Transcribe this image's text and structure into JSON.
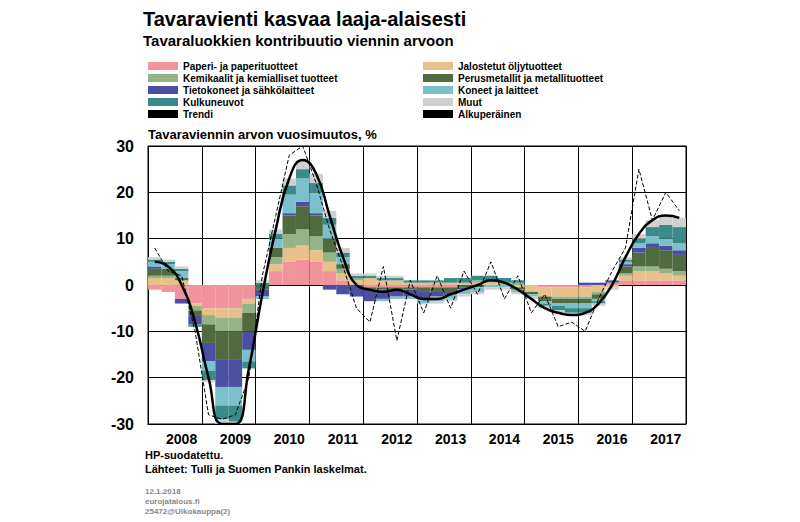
{
  "chart_data": {
    "type": "bar",
    "title": "Tavaravienti kasvaa laaja-alaisesti",
    "subtitle": "Tavaraluokkien kontribuutio viennin arvoon",
    "y_label": "Tavaraviennin arvon vuosimuutos, %",
    "notes": [
      "HP-suodatettu.",
      "Lähteet: Tulli ja Suomen Pankin laskelmat."
    ],
    "footer": [
      "12.1.2018",
      "eurojatalous.fi",
      "25472@Ulkokauppa(2)"
    ],
    "stacked": true,
    "grid": true,
    "ylim": [
      -30,
      30
    ],
    "yticks": [
      -30,
      -20,
      -10,
      0,
      10,
      20,
      30
    ],
    "categories": [
      null,
      null,
      "2008",
      null,
      null,
      null,
      "2009",
      null,
      null,
      null,
      "2010",
      null,
      null,
      null,
      "2011",
      null,
      null,
      null,
      "2012",
      null,
      null,
      null,
      "2013",
      null,
      null,
      null,
      "2014",
      null,
      null,
      null,
      "2015",
      null,
      null,
      null,
      "2016",
      null,
      null,
      null,
      "2017",
      null
    ],
    "series": [
      {
        "name": "Paperi- ja paperituotteet",
        "type": "bar",
        "color": "#f0939b",
        "values": [
          -1,
          -1.5,
          -3,
          -4,
          -5,
          -5,
          -5,
          -3,
          0,
          3,
          5,
          5.5,
          5,
          3,
          1,
          0,
          -0.5,
          -0.5,
          -0.5,
          -0.5,
          -0.5,
          -0.5,
          -0.5,
          0,
          0,
          0,
          0,
          0,
          0,
          -0.5,
          -0.5,
          -0.5,
          -0.5,
          0,
          0.5,
          1,
          1,
          1,
          1,
          1
        ]
      },
      {
        "name": "Jalostetut öljytuotteet",
        "type": "bar",
        "color": "#e8c08a",
        "values": [
          1.5,
          1.5,
          1,
          -0.5,
          -1.5,
          -2,
          -2,
          -1,
          0,
          1.5,
          3,
          3,
          2.5,
          2,
          1.5,
          1,
          1.5,
          1,
          1,
          0.5,
          0.5,
          0.5,
          0.5,
          0.5,
          0.5,
          0.5,
          0,
          -0.5,
          -1.5,
          -2,
          -2,
          -2,
          -2,
          -1.5,
          -0.5,
          1,
          2,
          2,
          1.5,
          1
        ]
      },
      {
        "name": "Kemikaalit ja kemialliset tuotteet",
        "type": "bar",
        "color": "#94b487",
        "values": [
          0.5,
          0.5,
          0,
          -1,
          -2,
          -3,
          -3,
          -2,
          0,
          1.5,
          3,
          3.5,
          3,
          2,
          1,
          0.5,
          0,
          0,
          0,
          0,
          0,
          0,
          0,
          0,
          0.5,
          0.5,
          0.5,
          0.5,
          0,
          0,
          -0.5,
          -0.5,
          -0.5,
          -0.5,
          0,
          0.5,
          1,
          1,
          1,
          1
        ]
      },
      {
        "name": "Perusmetallit ja metallituotteet",
        "type": "bar",
        "color": "#4f6b3f",
        "values": [
          1.5,
          1.5,
          0.5,
          -1,
          -4,
          -6,
          -6,
          -4,
          -1,
          2,
          4,
          5,
          4.5,
          3,
          1,
          0,
          -0.5,
          -0.5,
          -0.5,
          -0.5,
          -1,
          -1,
          -1,
          -0.5,
          -0.5,
          0,
          0,
          -0.5,
          -0.5,
          -1,
          -1,
          -1,
          -1,
          -1,
          0,
          1.5,
          3,
          4,
          4,
          3.5
        ]
      },
      {
        "name": "Tietokoneet ja sähkölaitteet",
        "type": "bar",
        "color": "#4a4fa3",
        "values": [
          0.5,
          0,
          -1,
          -2,
          -4,
          -6,
          -6,
          -4,
          -1.5,
          0,
          0.5,
          1,
          0.5,
          -1,
          -2,
          -2.5,
          -2.5,
          -2,
          -1.5,
          -1.5,
          -1.5,
          -1,
          -0.5,
          -0.5,
          0,
          0,
          0,
          0,
          0,
          0,
          0,
          0,
          0.5,
          0.5,
          0.5,
          0.5,
          1,
          1,
          1,
          1
        ]
      },
      {
        "name": "Koneet ja laitteet",
        "type": "bar",
        "color": "#7cc0cc",
        "values": [
          1,
          1,
          1.5,
          0,
          -2,
          -4,
          -4,
          -2.5,
          -0.5,
          2,
          4,
          5,
          4.5,
          3,
          1.5,
          0,
          0,
          -0.5,
          -0.5,
          -0.5,
          -1,
          -1,
          -1,
          -1,
          -1,
          -0.5,
          -0.5,
          -0.5,
          -0.5,
          -0.5,
          -0.5,
          -1,
          -1,
          -0.5,
          0,
          0.5,
          1,
          1.5,
          1.5,
          1.5
        ]
      },
      {
        "name": "Kulkuneuvot",
        "type": "bar",
        "color": "#3a8a8a",
        "values": [
          0.5,
          0.5,
          0.5,
          -0.5,
          -2,
          -3,
          -3.5,
          -1.5,
          0.5,
          1,
          2,
          2,
          2,
          1.5,
          1,
          0.5,
          0.5,
          0.5,
          0.5,
          0.5,
          0.5,
          0.5,
          1,
          1,
          1,
          1,
          1,
          0.5,
          0,
          -0.5,
          -1,
          -1,
          -1,
          -0.5,
          0,
          0.5,
          1,
          2,
          3,
          3.5
        ]
      },
      {
        "name": "Muut",
        "type": "bar",
        "color": "#d0d0d0",
        "values": [
          0.5,
          0.5,
          0.5,
          0,
          -0.5,
          -1,
          -0.5,
          0,
          0.5,
          1,
          1.5,
          2,
          2,
          1.5,
          1,
          0.5,
          0.5,
          0.5,
          0.5,
          0,
          0,
          -0.5,
          -0.5,
          -0.5,
          -0.5,
          -0.5,
          -0.5,
          -0.5,
          -0.5,
          -0.5,
          -0.5,
          -0.5,
          -0.5,
          -0.5,
          -0.5,
          0.5,
          1,
          1.5,
          2,
          2
        ]
      },
      {
        "name": "Trendi",
        "type": "line",
        "color": "#000000",
        "line_style": "solid",
        "values": [
          5,
          4,
          0,
          -8,
          -20,
          -30,
          -30,
          -18,
          -2,
          12,
          23,
          27,
          24,
          15,
          6,
          0,
          -1,
          -1.5,
          -1,
          -2,
          -3,
          -3,
          -2,
          -1,
          0,
          1,
          0.5,
          -1,
          -3,
          -5,
          -6,
          -6.5,
          -6,
          -4,
          0,
          6,
          11,
          14,
          15,
          14.5
        ]
      },
      {
        "name": "Alkuperäinen",
        "type": "line",
        "color": "#000000",
        "line_style": "dashed",
        "values": [
          8,
          3,
          2,
          -10,
          -28,
          -29,
          -28,
          -20,
          2,
          15,
          28,
          30,
          22,
          12,
          4,
          -5,
          -8,
          4,
          -12,
          1,
          -6,
          2,
          -5,
          3,
          -2,
          5,
          -3,
          2,
          -6,
          -2,
          -9,
          -8,
          -10,
          -3,
          3,
          8,
          25,
          14,
          20,
          16
        ]
      }
    ]
  }
}
